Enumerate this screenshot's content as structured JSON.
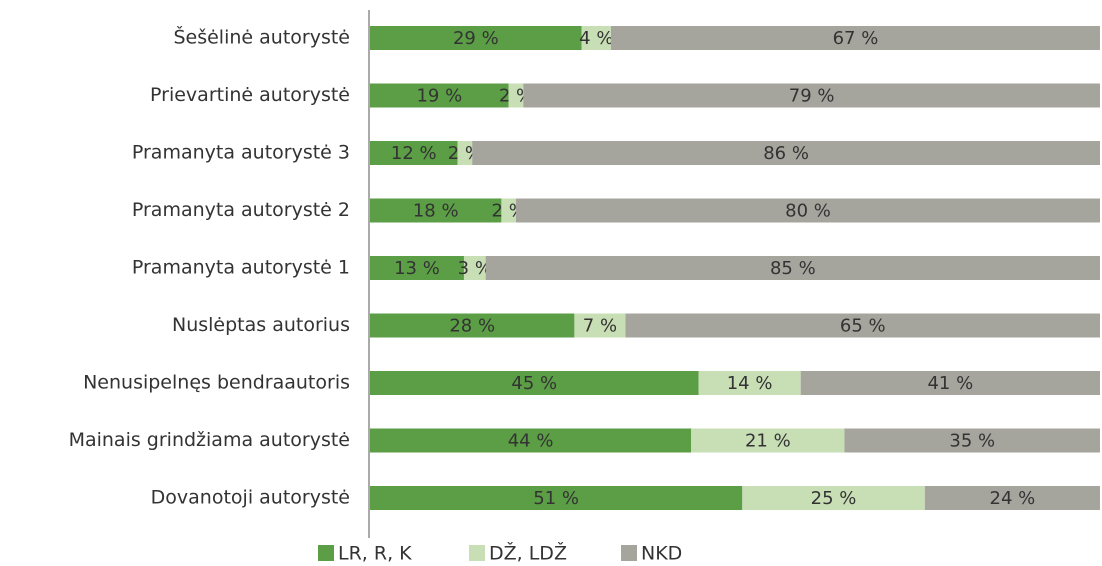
{
  "chart_data": {
    "type": "stacked_barh",
    "categories": [
      "Šešėlinė autorystė",
      "Prievartinė autorystė",
      "Pramanyta autorystė 3",
      "Pramanyta autorystė 2",
      "Pramanyta autorystė 1",
      "Nuslėptas autorius",
      "Nenusipelnęs bendraautoris",
      "Mainais grindžiama autorystė",
      "Dovanotoji autorystė"
    ],
    "series": [
      {
        "name": "LR, R, K",
        "color": "#5b9e45",
        "values": [
          29,
          19,
          12,
          18,
          13,
          28,
          45,
          44,
          51
        ],
        "value_labels": [
          "29 %",
          "19 %",
          "12 %",
          "18 %",
          "13 %",
          "28 %",
          "45 %",
          "44 %",
          "51 %"
        ]
      },
      {
        "name": "DŽ, LDŽ",
        "color": "#c8dfb6",
        "values": [
          4,
          2,
          2,
          2,
          3,
          7,
          14,
          21,
          25
        ],
        "value_labels": [
          "4 %",
          "2 %",
          "2 %",
          "2 %",
          "3 %",
          "7 %",
          "14 %",
          "21 %",
          "25 %"
        ]
      },
      {
        "name": "NKD",
        "color": "#a5a59e",
        "values": [
          67,
          79,
          86,
          80,
          85,
          65,
          41,
          35,
          24
        ],
        "value_labels": [
          "67 %",
          "79 %",
          "86 %",
          "80 %",
          "85 %",
          "65 %",
          "41 %",
          "35 %",
          "24 %"
        ]
      }
    ],
    "legend": "bottom"
  }
}
